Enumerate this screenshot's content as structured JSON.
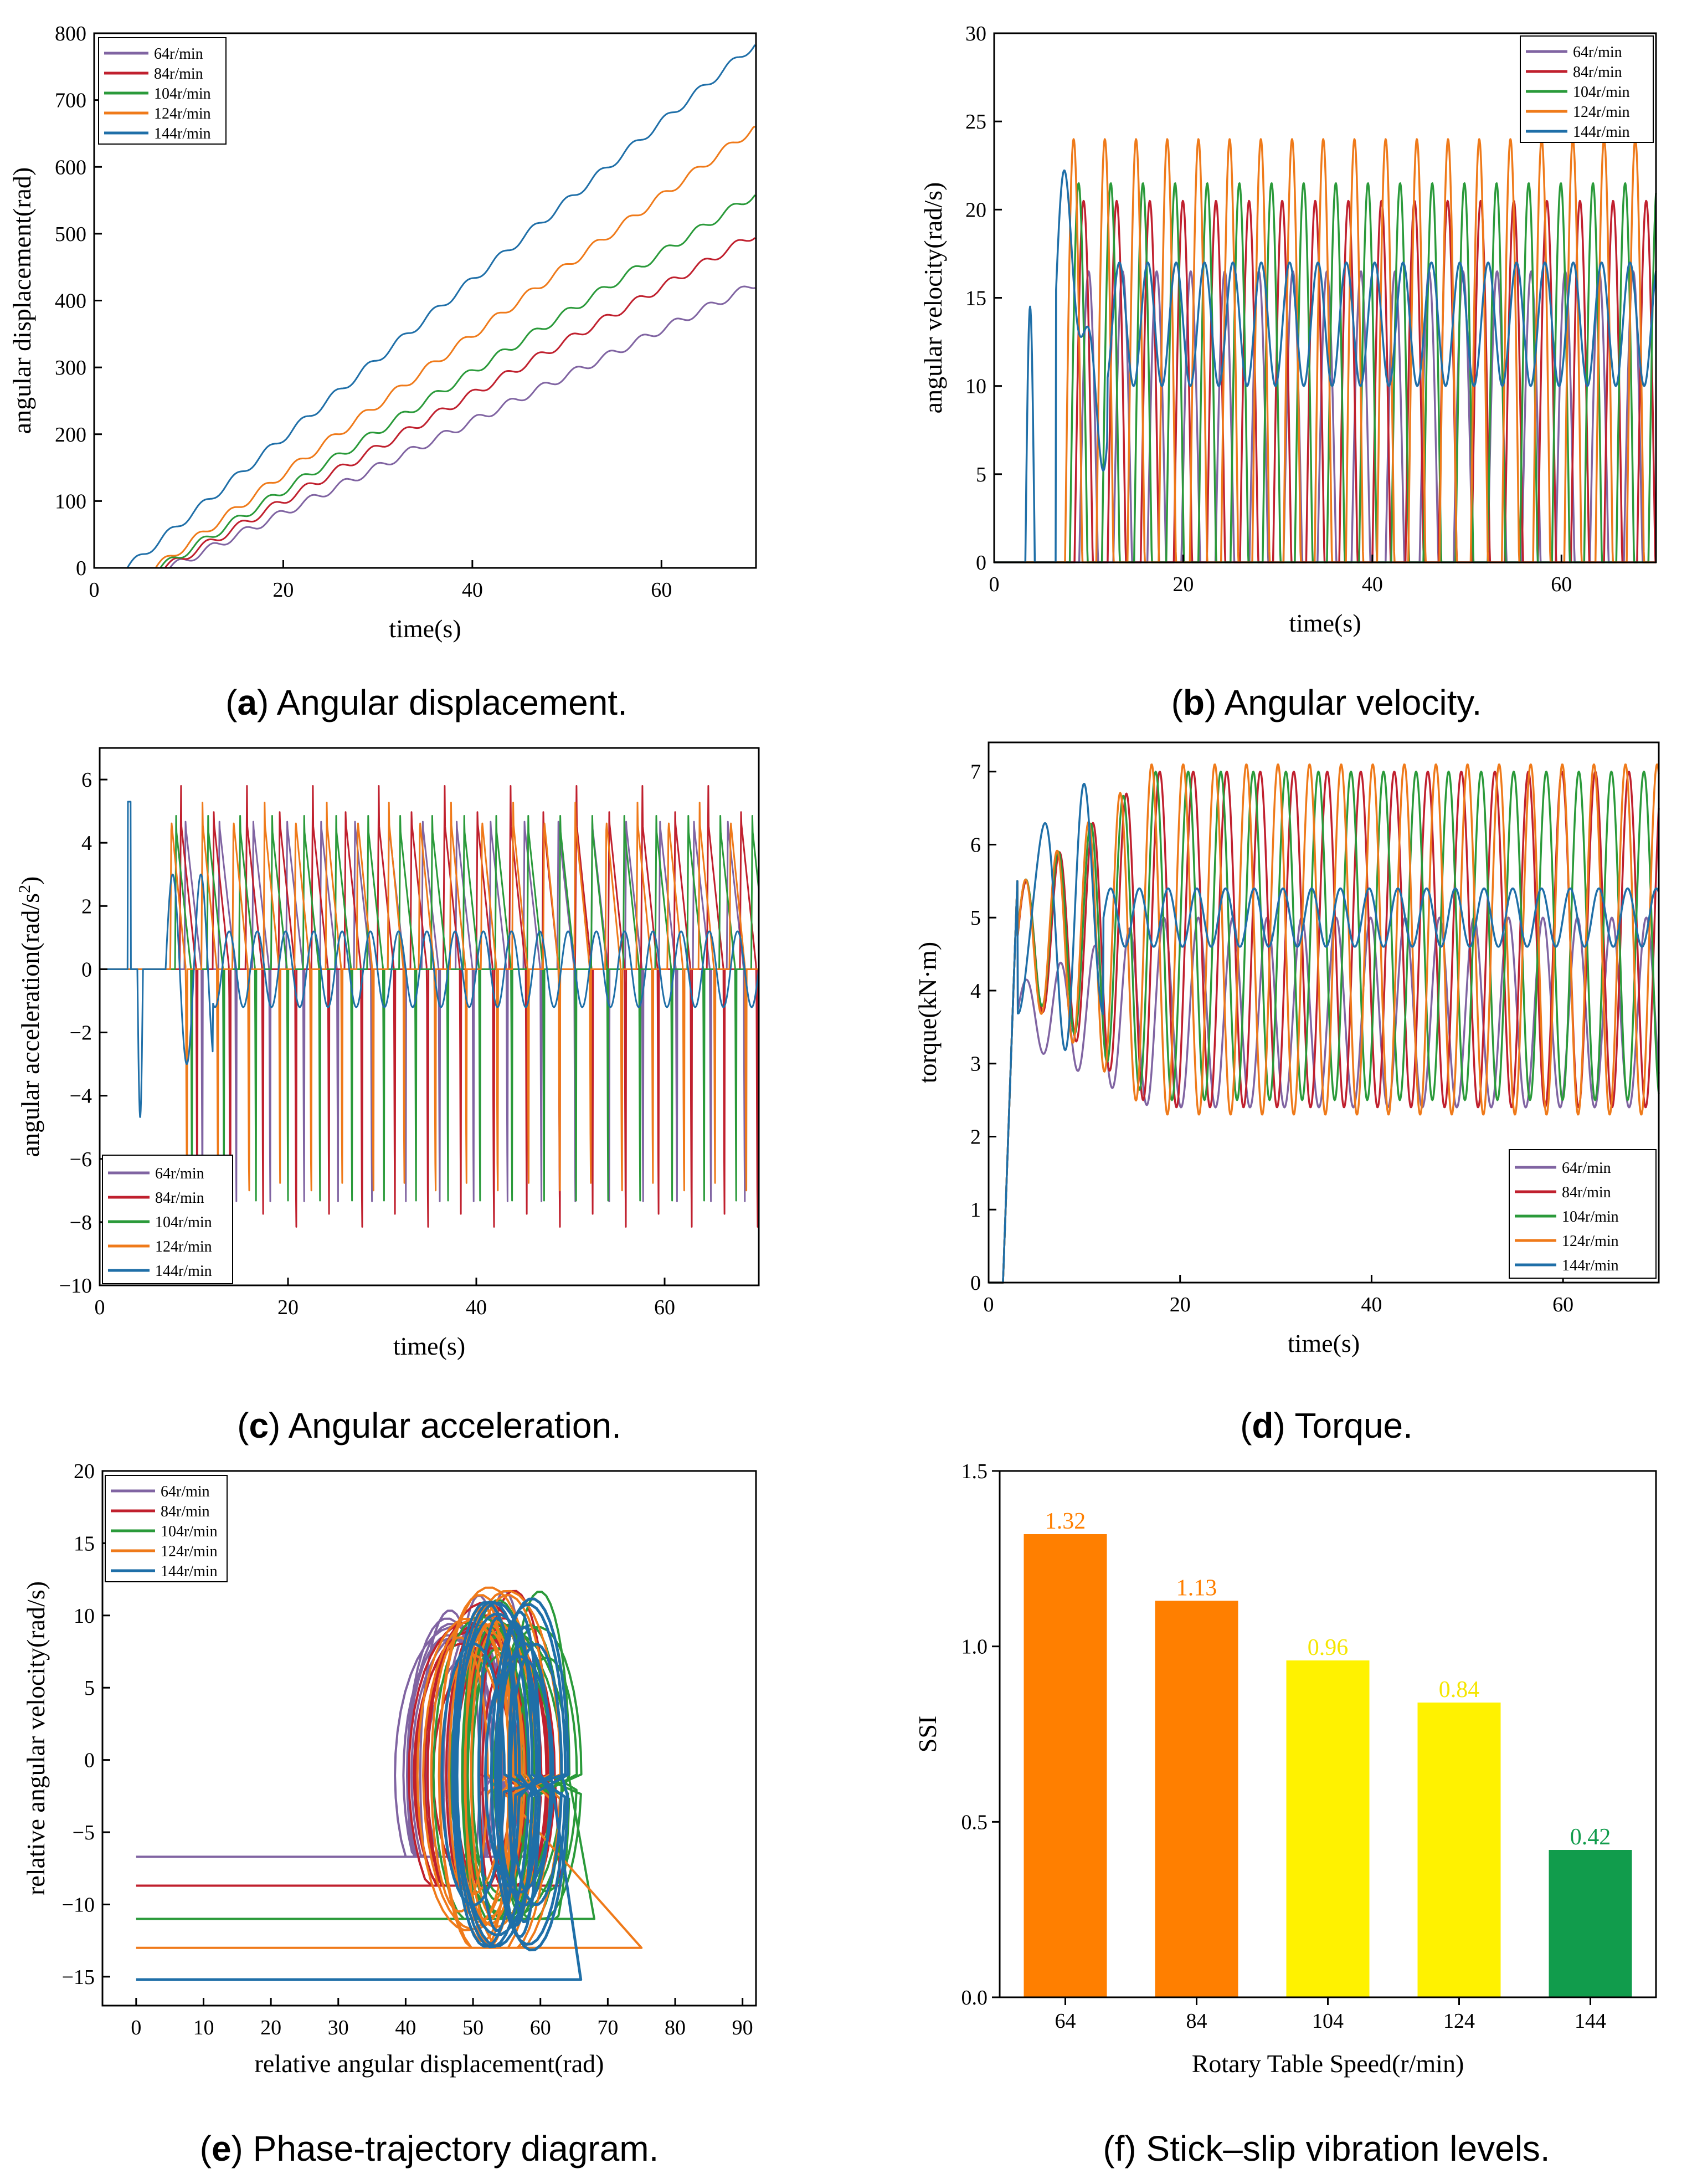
{
  "colors": {
    "64r/min": "#8064a2",
    "84r/min": "#c0202e",
    "104r/min": "#2a9a3a",
    "124r/min": "#ef7a1a",
    "144r/min": "#1f6fa8",
    "bar_orange": "#ff7f00",
    "bar_yellow": "#fff200",
    "bar_green": "#119c4c"
  },
  "series_names": [
    "64r/min",
    "84r/min",
    "104r/min",
    "124r/min",
    "144r/min"
  ],
  "captions": {
    "a": {
      "letter": "a",
      "text": " Angular displacement."
    },
    "b": {
      "letter": "b",
      "text": " Angular velocity."
    },
    "c": {
      "letter": "c",
      "text": " Angular acceleration."
    },
    "d": {
      "letter": "d",
      "text": " Torque."
    },
    "e": {
      "letter": "e",
      "text": " Phase-trajectory diagram."
    },
    "f": {
      "letter": "",
      "text": "(f) Stick–slip vibration levels."
    }
  },
  "chart_data": [
    {
      "id": "a",
      "type": "line",
      "xlabel": "time(s)",
      "ylabel": "angular displacement(rad)",
      "xlim": [
        0,
        70
      ],
      "ylim": [
        0,
        800
      ],
      "xticks": [
        0,
        20,
        40,
        60
      ],
      "yticks": [
        0,
        100,
        200,
        300,
        400,
        500,
        600,
        700,
        800
      ],
      "legend": "top-left",
      "series": [
        {
          "name": "64r/min",
          "start": 8,
          "end_value": 425
        },
        {
          "name": "84r/min",
          "start": 7.5,
          "end_value": 500
        },
        {
          "name": "104r/min",
          "start": 7,
          "end_value": 560
        },
        {
          "name": "124r/min",
          "start": 6.5,
          "end_value": 660
        },
        {
          "name": "144r/min",
          "start": 3.5,
          "end_value": 785
        }
      ]
    },
    {
      "id": "b",
      "type": "line",
      "xlabel": "time(s)",
      "ylabel": "angular velocity(rad/s)",
      "xlim": [
        0,
        70
      ],
      "ylim": [
        0,
        30
      ],
      "xticks": [
        0,
        20,
        40,
        60
      ],
      "yticks": [
        0,
        5,
        10,
        15,
        20,
        25,
        30
      ],
      "legend": "top-right",
      "series": [
        {
          "name": "64r/min",
          "peak": 16.5,
          "period": 3.6
        },
        {
          "name": "84r/min",
          "peak": 20.5,
          "period": 3.5
        },
        {
          "name": "104r/min",
          "peak": 21.5,
          "period": 3.4
        },
        {
          "name": "124r/min",
          "peak": 24.0,
          "period": 3.3
        },
        {
          "name": "144r/min",
          "peak": 17.0,
          "period": 3.0,
          "mean": 13.5
        }
      ]
    },
    {
      "id": "c",
      "type": "line",
      "xlabel": "time(s)",
      "ylabel": "angular acceleration(rad/s",
      "ylabel_sup": "2",
      "ylabel_end": ")",
      "xlim": [
        0,
        70
      ],
      "ylim": [
        -10,
        7
      ],
      "xticks": [
        0,
        20,
        40,
        60
      ],
      "yticks": [
        -10,
        -8,
        -6,
        -4,
        -2,
        0,
        2,
        4,
        6
      ],
      "legend": "bottom-left",
      "series": [
        {
          "name": "64r/min",
          "peak": 5.6,
          "trough": -7.6
        },
        {
          "name": "84r/min",
          "peak": 5.8,
          "trough": -8.2
        },
        {
          "name": "104r/min",
          "peak": 5.5,
          "trough": -8.0
        },
        {
          "name": "124r/min",
          "peak": 5.8,
          "trough": -7.0
        },
        {
          "name": "144r/min",
          "peak": 1.5,
          "trough": -1.5
        }
      ]
    },
    {
      "id": "d",
      "type": "line",
      "xlabel": "time(s)",
      "ylabel": "torque(kN·m)",
      "xlim": [
        0,
        70
      ],
      "ylim": [
        0,
        7.4
      ],
      "xticks": [
        0,
        20,
        40,
        60
      ],
      "yticks": [
        0,
        1,
        2,
        3,
        4,
        5,
        6,
        7
      ],
      "legend": "bottom-right",
      "series": [
        {
          "name": "64r/min",
          "high": 5.0,
          "low": 2.4
        },
        {
          "name": "84r/min",
          "high": 7.0,
          "low": 2.4
        },
        {
          "name": "104r/min",
          "high": 7.0,
          "low": 2.5
        },
        {
          "name": "124r/min",
          "high": 7.1,
          "low": 2.3
        },
        {
          "name": "144r/min",
          "high": 5.3,
          "low": 4.5
        }
      ]
    },
    {
      "id": "e",
      "type": "line",
      "xlabel": "relative angular displacement(rad)",
      "ylabel": "relative angular velocity(rad/s)",
      "xlim": [
        -5,
        92
      ],
      "ylim": [
        -17,
        20
      ],
      "xticks": [
        0,
        10,
        20,
        30,
        40,
        50,
        60,
        70,
        80,
        90
      ],
      "yticks": [
        -15,
        -10,
        -5,
        0,
        5,
        10,
        15,
        20
      ],
      "legend": "top-left",
      "series": [
        {
          "name": "64r/min",
          "stick_velocity": -6.7,
          "stick_end": 52
        },
        {
          "name": "84r/min",
          "stick_velocity": -8.7,
          "stick_end": 63
        },
        {
          "name": "104r/min",
          "stick_velocity": -11.0,
          "stick_end": 68
        },
        {
          "name": "124r/min",
          "stick_velocity": -13.0,
          "stick_end": 75
        },
        {
          "name": "144r/min",
          "stick_velocity": -15.2,
          "stick_end": 66
        }
      ]
    },
    {
      "id": "f",
      "type": "bar",
      "xlabel": "Rotary Table Speed(r/min)",
      "ylabel": "SSI",
      "ylim": [
        0,
        1.5
      ],
      "yticks": [
        "0.0",
        "0.5",
        "1.0",
        "1.5"
      ],
      "categories": [
        "64",
        "84",
        "104",
        "124",
        "144"
      ],
      "values": [
        1.32,
        1.13,
        0.96,
        0.84,
        0.42
      ],
      "value_labels": [
        "1.32",
        "1.13",
        "0.96",
        "0.84",
        "0.42"
      ],
      "bar_colors": [
        "#ff7f00",
        "#ff7f00",
        "#fff200",
        "#fff200",
        "#119c4c"
      ],
      "label_colors": [
        "#ff7f00",
        "#ff7f00",
        "#f5e600",
        "#f5e600",
        "#119c4c"
      ]
    }
  ]
}
